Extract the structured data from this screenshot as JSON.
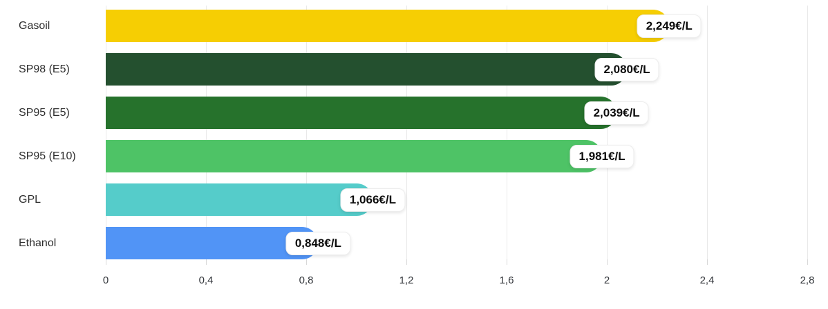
{
  "chart_data": {
    "type": "bar",
    "orientation": "horizontal",
    "title": "",
    "xlabel": "",
    "ylabel": "",
    "unit": "€/L",
    "categories": [
      "Gasoil",
      "SP98 (E5)",
      "SP95 (E5)",
      "SP95 (E10)",
      "GPL",
      "Ethanol"
    ],
    "values": [
      2.249,
      2.08,
      2.039,
      1.981,
      1.066,
      0.848
    ],
    "value_labels": [
      "2,249€/L",
      "2,080€/L",
      "2,039€/L",
      "1,981€/L",
      "1,066€/L",
      "0,848€/L"
    ],
    "bar_colors": [
      "#F6CE03",
      "#24502F",
      "#26722C",
      "#4EC366",
      "#55CCCA",
      "#5194F6"
    ],
    "x_ticks": [
      0,
      0.4,
      0.8,
      1.2,
      1.6,
      2,
      2.4,
      2.8
    ],
    "x_tick_labels": [
      "0",
      "0,4",
      "0,8",
      "1,2",
      "1,6",
      "2",
      "2,4",
      "2,8"
    ],
    "xlim": [
      0,
      2.8
    ],
    "grid": "vertical",
    "grid_color": "#e9e9e9",
    "legend": "none"
  }
}
